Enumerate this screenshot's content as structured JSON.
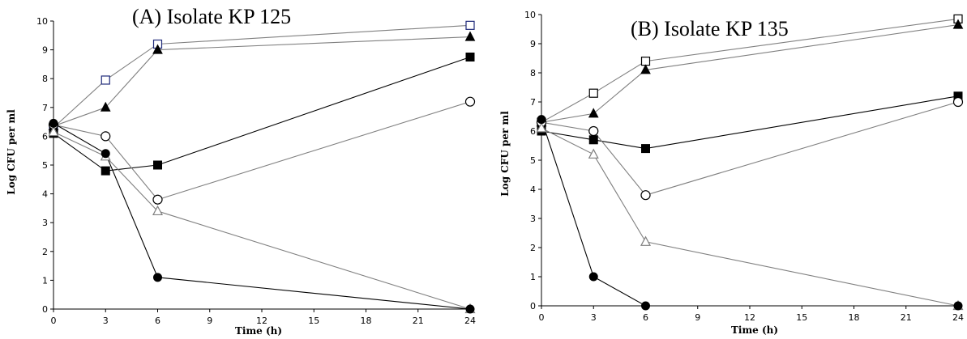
{
  "chart_data": [
    {
      "type": "line",
      "title": "(A) Isolate KP 125",
      "xlabel": "Time (h)",
      "ylabel": "Log CFU per ml",
      "xlim": [
        0,
        24
      ],
      "ylim": [
        0,
        10
      ],
      "xticks": [
        "0",
        "3",
        "6",
        "9",
        "12",
        "15",
        "18",
        "21",
        "24"
      ],
      "yticks": [
        "0",
        "1",
        "2",
        "3",
        "4",
        "5",
        "6",
        "7",
        "8",
        "9",
        "10"
      ],
      "grid": false,
      "x": [
        0,
        3,
        6,
        24
      ],
      "series": [
        {
          "marker": "open-square",
          "values": [
            6.3,
            7.95,
            9.2,
            9.85
          ],
          "marker_color": "#1f2a7a",
          "line_color": "#808080"
        },
        {
          "marker": "filled-triangle",
          "values": [
            6.35,
            7.0,
            9.0,
            9.45
          ],
          "marker_color": "#000000",
          "line_color": "#808080"
        },
        {
          "marker": "filled-square",
          "values": [
            6.1,
            4.8,
            5.0,
            8.75
          ],
          "marker_color": "#000000",
          "line_color": "#000000"
        },
        {
          "marker": "open-circle",
          "values": [
            6.4,
            6.0,
            3.8,
            7.2
          ],
          "marker_color": "#000000",
          "line_color": "#808080"
        },
        {
          "marker": "open-triangle",
          "values": [
            6.15,
            5.3,
            3.4,
            0.0
          ],
          "marker_color": "#808080",
          "line_color": "#808080"
        },
        {
          "marker": "filled-circle",
          "values": [
            6.45,
            5.4,
            1.1,
            0.0
          ],
          "marker_color": "#000000",
          "line_color": "#000000"
        }
      ]
    },
    {
      "type": "line",
      "title": "(B) Isolate KP 135",
      "xlabel": "Time (h)",
      "ylabel": "Log CFU per ml",
      "xlim": [
        0,
        24
      ],
      "ylim": [
        0,
        10
      ],
      "xticks": [
        "0",
        "3",
        "6",
        "9",
        "12",
        "15",
        "18",
        "21",
        "24"
      ],
      "yticks": [
        "0",
        "1",
        "2",
        "3",
        "4",
        "5",
        "6",
        "7",
        "8",
        "9",
        "10"
      ],
      "grid": false,
      "x": [
        0,
        3,
        6,
        24
      ],
      "series": [
        {
          "marker": "open-square",
          "values": [
            6.3,
            7.3,
            8.4,
            9.85
          ],
          "marker_color": "#000000",
          "line_color": "#808080"
        },
        {
          "marker": "filled-triangle",
          "values": [
            6.3,
            6.6,
            8.1,
            9.65
          ],
          "marker_color": "#000000",
          "line_color": "#808080"
        },
        {
          "marker": "filled-square",
          "values": [
            6.0,
            5.7,
            5.4,
            7.2
          ],
          "marker_color": "#000000",
          "line_color": "#000000"
        },
        {
          "marker": "open-circle",
          "values": [
            6.3,
            6.0,
            3.8,
            7.0
          ],
          "marker_color": "#000000",
          "line_color": "#808080"
        },
        {
          "marker": "open-triangle",
          "values": [
            6.1,
            5.2,
            2.2,
            0.0
          ],
          "marker_color": "#808080",
          "line_color": "#808080"
        },
        {
          "marker": "filled-circle",
          "values": [
            6.4,
            1.0,
            0.0,
            0.0
          ],
          "marker_color": "#000000",
          "line_color": "#000000"
        }
      ]
    }
  ]
}
